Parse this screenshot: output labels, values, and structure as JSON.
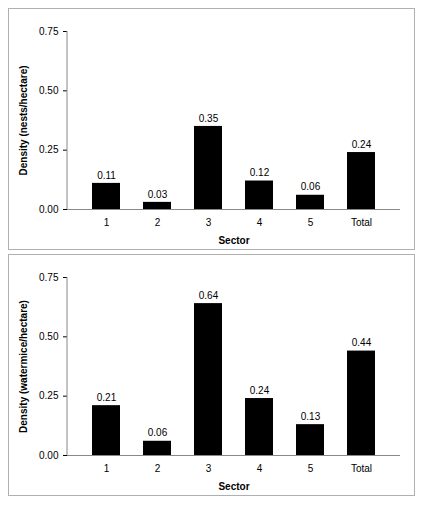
{
  "chart_data": [
    {
      "type": "bar",
      "x_label": "Sector",
      "y_label": "Density (nests/hectare)",
      "categories": [
        "1",
        "2",
        "3",
        "4",
        "5",
        "Total"
      ],
      "values": [
        0.11,
        0.03,
        0.35,
        0.12,
        0.06,
        0.24
      ],
      "color": "#000000",
      "ylim": [
        0,
        0.75
      ],
      "yticks": [
        {
          "value": 0,
          "label": "0.00"
        },
        {
          "value": 0.25,
          "label": "0.25"
        },
        {
          "value": 0.5,
          "label": "0.50"
        },
        {
          "value": 0.75,
          "label": "0.75"
        }
      ],
      "grid": false,
      "data_labels": true
    },
    {
      "type": "bar",
      "x_label": "Sector",
      "y_label": "Density (watermice/hectare)",
      "categories": [
        "1",
        "2",
        "3",
        "4",
        "5",
        "Total"
      ],
      "values": [
        0.21,
        0.06,
        0.64,
        0.24,
        0.13,
        0.44
      ],
      "color": "#000000",
      "ylim": [
        0,
        0.75
      ],
      "yticks": [
        {
          "value": 0,
          "label": "0.00"
        },
        {
          "value": 0.25,
          "label": "0.25"
        },
        {
          "value": 0.5,
          "label": "0.50"
        },
        {
          "value": 0.75,
          "label": "0.75"
        }
      ],
      "grid": false,
      "data_labels": true
    }
  ]
}
